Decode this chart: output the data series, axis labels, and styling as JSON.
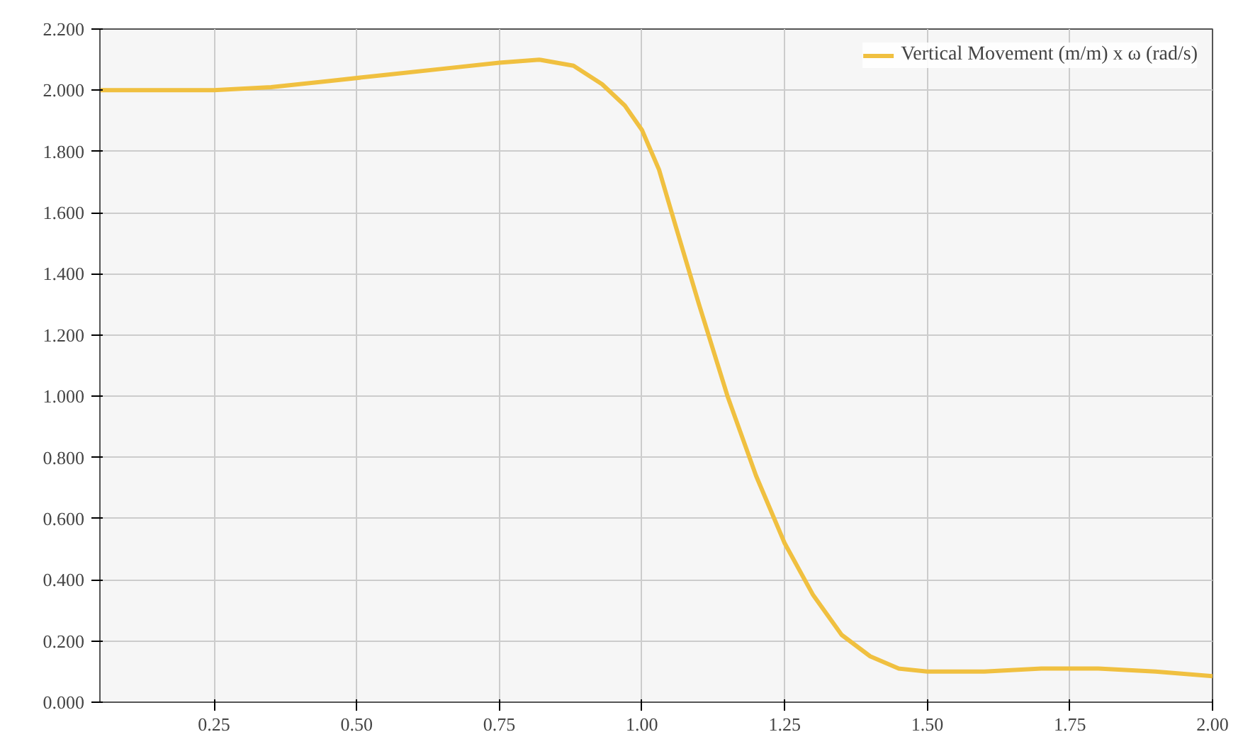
{
  "chart_data": {
    "type": "line",
    "x": [
      0.05,
      0.15,
      0.25,
      0.35,
      0.45,
      0.55,
      0.65,
      0.75,
      0.82,
      0.88,
      0.93,
      0.97,
      1.0,
      1.03,
      1.06,
      1.1,
      1.15,
      1.2,
      1.25,
      1.3,
      1.35,
      1.4,
      1.45,
      1.5,
      1.6,
      1.7,
      1.8,
      1.9,
      2.0
    ],
    "series": [
      {
        "name": "Vertical Movement (m/m) x ω (rad/s)",
        "color": "#f0c040",
        "values": [
          2.0,
          2.0,
          2.0,
          2.01,
          2.03,
          2.05,
          2.07,
          2.09,
          2.1,
          2.08,
          2.02,
          1.95,
          1.87,
          1.74,
          1.55,
          1.3,
          1.0,
          0.74,
          0.52,
          0.35,
          0.22,
          0.15,
          0.11,
          0.1,
          0.1,
          0.11,
          0.11,
          0.1,
          0.085
        ]
      }
    ],
    "xlim": [
      0.05,
      2.0
    ],
    "xticks": [
      0.25,
      {
        "value": 0.5,
        "label": "0.50"
      },
      0.75,
      {
        "value": 1.0,
        "label": "1.00"
      },
      1.25,
      {
        "value": 1.5,
        "label": "1.50"
      },
      1.75,
      {
        "value": 2.0,
        "label": "2.00"
      }
    ],
    "ylim": [
      0,
      2.2
    ],
    "yticks": [
      {
        "value": 0,
        "label": "0.000"
      },
      {
        "value": 0.2,
        "label": "0.200"
      },
      {
        "value": 0.4,
        "label": "0.400"
      },
      {
        "value": 0.6,
        "label": "0.600"
      },
      {
        "value": 0.8,
        "label": "0.800"
      },
      {
        "value": 1.0,
        "label": "1.000"
      },
      {
        "value": 1.2,
        "label": "1.200"
      },
      {
        "value": 1.4,
        "label": "1.400"
      },
      {
        "value": 1.6,
        "label": "1.600"
      },
      {
        "value": 1.8,
        "label": "1.800"
      },
      {
        "value": 2.0,
        "label": "2.000"
      },
      {
        "value": 2.2,
        "label": "2.200"
      }
    ],
    "grid": true,
    "legend": "top right",
    "marker": "none",
    "line_style": "solid"
  }
}
